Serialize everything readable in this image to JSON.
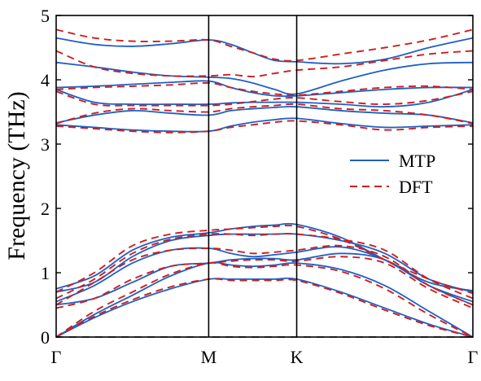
{
  "chart_data": {
    "type": "line",
    "ylabel": "Frequency (THz)",
    "ylim": [
      0,
      5
    ],
    "yticks": [
      "0",
      "1",
      "2",
      "3",
      "4",
      "5"
    ],
    "xticks": [
      {
        "label": "Γ",
        "x": 0
      },
      {
        "label": "M",
        "x": 1
      },
      {
        "label": "K",
        "x": 1.577
      },
      {
        "label": "Γ",
        "x": 2.732
      }
    ],
    "high_symbol_lines": [
      1,
      1.577
    ],
    "zero_line": 0,
    "x_samples": [
      0,
      0.25,
      0.5,
      0.75,
      1,
      1.1443,
      1.2885,
      1.4328,
      1.577,
      1.866,
      2.155,
      2.444,
      2.732
    ],
    "legend": {
      "position": "center-right",
      "entries": [
        "MTP",
        "DFT"
      ]
    },
    "series": [
      {
        "name": "MTP",
        "color": "#1f5fc4",
        "style": "solid",
        "bands": [
          [
            0,
            0.3,
            0.55,
            0.75,
            0.9,
            0.9,
            0.9,
            0.9,
            0.9,
            0.7,
            0.45,
            0.2,
            0
          ],
          [
            0,
            0.35,
            0.65,
            0.95,
            1.15,
            1.12,
            1.1,
            1.12,
            1.15,
            1.05,
            0.8,
            0.4,
            0
          ],
          [
            0.5,
            0.6,
            0.85,
            1.1,
            1.15,
            1.2,
            1.22,
            1.22,
            1.2,
            1.3,
            1.2,
            0.8,
            0.5
          ],
          [
            0.55,
            0.8,
            1.15,
            1.35,
            1.38,
            1.3,
            1.25,
            1.28,
            1.32,
            1.4,
            1.2,
            0.8,
            0.55
          ],
          [
            0.7,
            0.85,
            1.25,
            1.5,
            1.58,
            1.6,
            1.6,
            1.6,
            1.6,
            1.5,
            1.3,
            0.9,
            0.7
          ],
          [
            0.75,
            0.95,
            1.35,
            1.55,
            1.62,
            1.68,
            1.72,
            1.74,
            1.75,
            1.55,
            1.2,
            0.85,
            0.72
          ],
          [
            3.3,
            3.26,
            3.22,
            3.2,
            3.2,
            3.28,
            3.34,
            3.38,
            3.4,
            3.32,
            3.26,
            3.28,
            3.3
          ],
          [
            3.33,
            3.45,
            3.52,
            3.48,
            3.45,
            3.52,
            3.55,
            3.57,
            3.58,
            3.52,
            3.48,
            3.45,
            3.33
          ],
          [
            3.85,
            3.65,
            3.62,
            3.62,
            3.62,
            3.64,
            3.65,
            3.65,
            3.65,
            3.62,
            3.58,
            3.65,
            3.85
          ],
          [
            3.88,
            3.9,
            3.93,
            3.96,
            3.98,
            3.88,
            3.8,
            3.75,
            3.75,
            3.8,
            3.85,
            3.88,
            3.88
          ],
          [
            4.27,
            4.2,
            4.12,
            4.06,
            4.04,
            4.02,
            3.95,
            3.85,
            3.78,
            3.98,
            4.15,
            4.25,
            4.27
          ],
          [
            4.65,
            4.55,
            4.52,
            4.56,
            4.62,
            4.55,
            4.42,
            4.3,
            4.28,
            4.25,
            4.32,
            4.5,
            4.65
          ]
        ]
      },
      {
        "name": "DFT",
        "color": "#cc1f1f",
        "style": "dashed",
        "bands": [
          [
            0,
            0.32,
            0.58,
            0.78,
            0.9,
            0.88,
            0.88,
            0.88,
            0.88,
            0.68,
            0.42,
            0.18,
            0
          ],
          [
            0,
            0.4,
            0.7,
            0.98,
            1.15,
            1.1,
            1.08,
            1.1,
            1.12,
            1.02,
            0.75,
            0.35,
            0
          ],
          [
            0.45,
            0.6,
            0.9,
            1.1,
            1.15,
            1.18,
            1.2,
            1.2,
            1.18,
            1.25,
            1.15,
            0.75,
            0.45
          ],
          [
            0.5,
            0.85,
            1.2,
            1.35,
            1.38,
            1.35,
            1.3,
            1.32,
            1.35,
            1.42,
            1.25,
            0.8,
            0.5
          ],
          [
            0.6,
            0.9,
            1.3,
            1.52,
            1.6,
            1.6,
            1.58,
            1.6,
            1.6,
            1.52,
            1.35,
            0.9,
            0.6
          ],
          [
            0.7,
            1,
            1.42,
            1.6,
            1.66,
            1.68,
            1.7,
            1.72,
            1.72,
            1.52,
            1.2,
            0.9,
            0.68
          ],
          [
            3.28,
            3.24,
            3.2,
            3.18,
            3.2,
            3.26,
            3.3,
            3.34,
            3.36,
            3.3,
            3.22,
            3.26,
            3.28
          ],
          [
            3.32,
            3.48,
            3.55,
            3.52,
            3.5,
            3.55,
            3.58,
            3.6,
            3.62,
            3.55,
            3.52,
            3.45,
            3.32
          ],
          [
            3.82,
            3.62,
            3.6,
            3.6,
            3.6,
            3.62,
            3.66,
            3.7,
            3.72,
            3.66,
            3.62,
            3.68,
            3.82
          ],
          [
            3.85,
            3.88,
            3.9,
            3.92,
            3.95,
            3.88,
            3.82,
            3.78,
            3.76,
            3.82,
            3.88,
            3.9,
            3.85
          ],
          [
            4.45,
            4.2,
            4.1,
            4.06,
            4.06,
            4.08,
            4.05,
            4.1,
            4.15,
            4.2,
            4.3,
            4.4,
            4.45
          ],
          [
            4.78,
            4.65,
            4.6,
            4.6,
            4.62,
            4.52,
            4.42,
            4.32,
            4.3,
            4.4,
            4.5,
            4.62,
            4.78
          ]
        ]
      }
    ]
  }
}
